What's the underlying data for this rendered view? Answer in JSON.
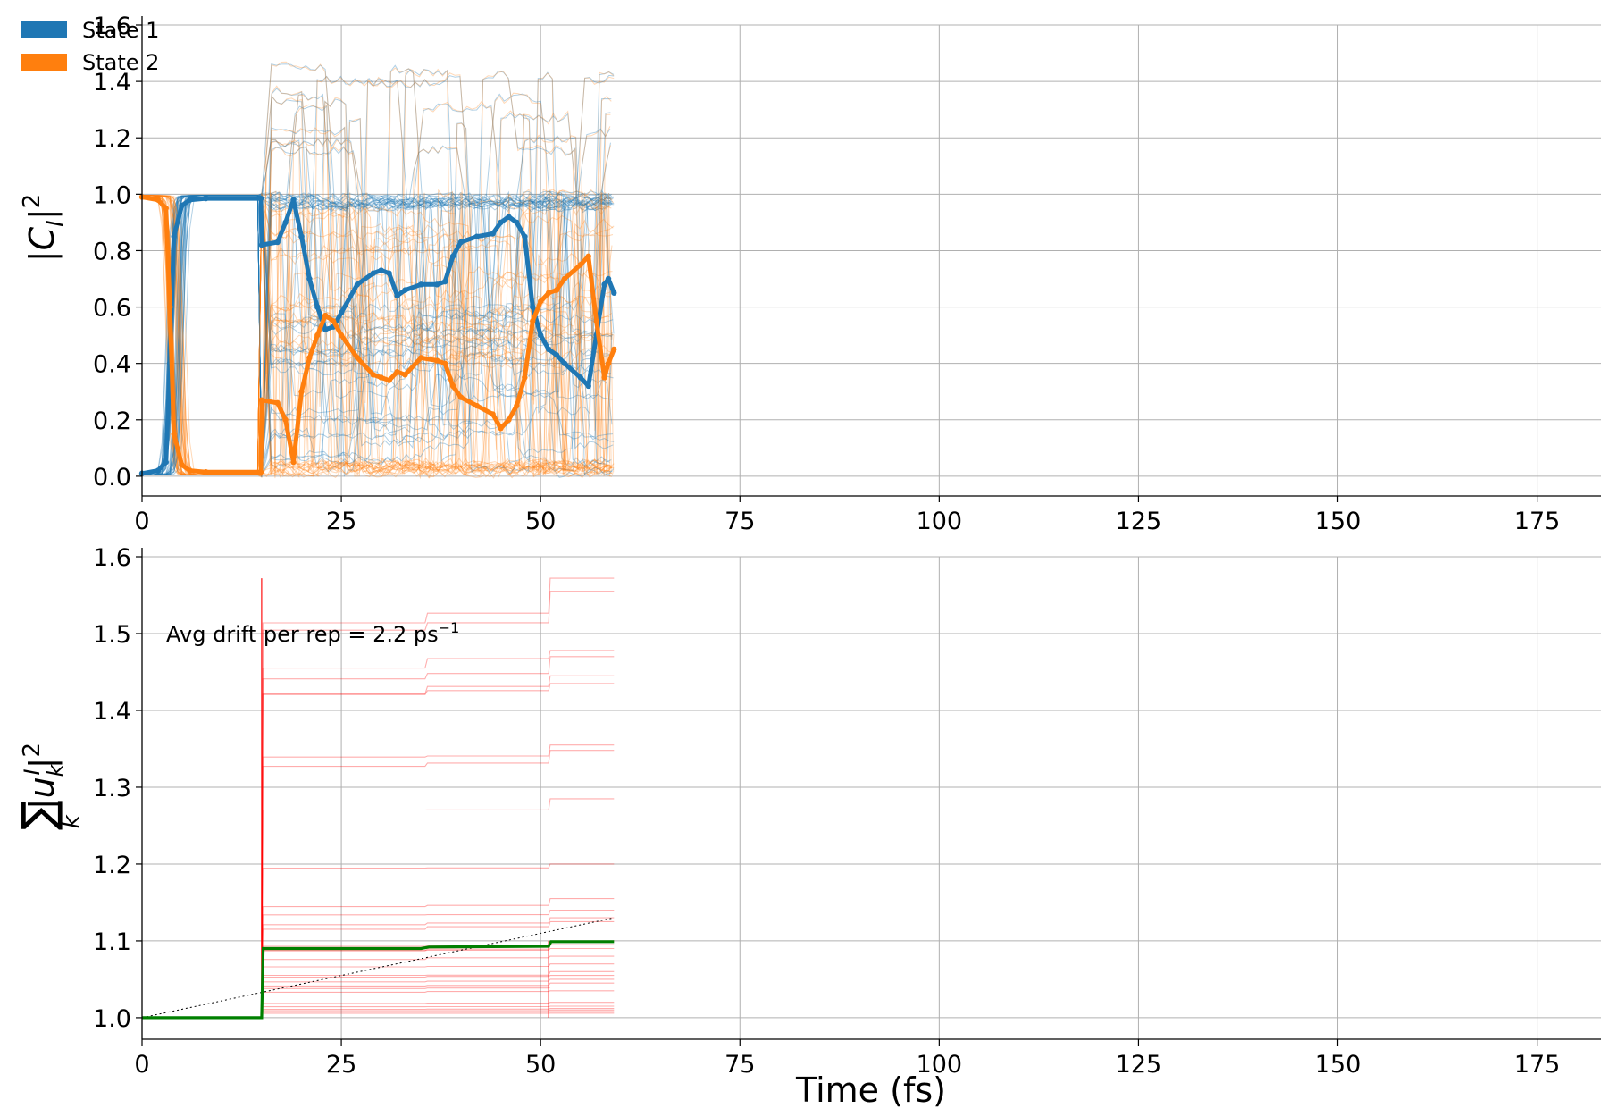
{
  "chart_data": [
    {
      "type": "line",
      "ylabel": "|C_I|²",
      "xlabel": "",
      "xlim": [
        0,
        183
      ],
      "ylim": [
        -0.07,
        1.6
      ],
      "xticks": [
        0,
        25,
        50,
        75,
        100,
        125,
        150,
        175
      ],
      "yticks": [
        "0.0",
        "0.2",
        "0.4",
        "0.6",
        "0.8",
        "1.0",
        "1.2",
        "1.4",
        "1.6"
      ],
      "grid": true,
      "legend": {
        "placement": "top-left",
        "entries": [
          {
            "label": "State 1",
            "color": "#1f77b4"
          },
          {
            "label": "State 2",
            "color": "#ff7f0e"
          }
        ]
      },
      "series": [
        {
          "name": "State 1",
          "color": "#1f77b4",
          "x": [
            0,
            2,
            3,
            3.5,
            4,
            5,
            6,
            8,
            14.9,
            15,
            17,
            18,
            19,
            20,
            21,
            22,
            23,
            24,
            25,
            27,
            29,
            30,
            31,
            32,
            33,
            35,
            37,
            38,
            39,
            40,
            42,
            44,
            45,
            46,
            47,
            48,
            49,
            50,
            51,
            52,
            53,
            55,
            56,
            57,
            58,
            58.5,
            59.2
          ],
          "y": [
            0.01,
            0.02,
            0.05,
            0.4,
            0.85,
            0.96,
            0.98,
            0.985,
            0.985,
            0.82,
            0.83,
            0.9,
            0.98,
            0.85,
            0.7,
            0.6,
            0.52,
            0.53,
            0.58,
            0.68,
            0.72,
            0.73,
            0.72,
            0.64,
            0.66,
            0.68,
            0.68,
            0.69,
            0.78,
            0.83,
            0.85,
            0.86,
            0.9,
            0.92,
            0.9,
            0.85,
            0.6,
            0.5,
            0.45,
            0.43,
            0.4,
            0.35,
            0.32,
            0.5,
            0.68,
            0.7,
            0.65
          ]
        },
        {
          "name": "State 2",
          "color": "#ff7f0e",
          "x": [
            0,
            2,
            3,
            3.5,
            4,
            5,
            6,
            8,
            14.9,
            15,
            17,
            18,
            19,
            20,
            21,
            22,
            23,
            24,
            25,
            27,
            29,
            30,
            31,
            32,
            33,
            35,
            37,
            38,
            39,
            40,
            42,
            44,
            45,
            46,
            47,
            48,
            49,
            50,
            51,
            52,
            53,
            55,
            56,
            57,
            58,
            58.5,
            59.2
          ],
          "y": [
            0.99,
            0.98,
            0.95,
            0.6,
            0.15,
            0.04,
            0.02,
            0.015,
            0.015,
            0.27,
            0.26,
            0.2,
            0.05,
            0.3,
            0.42,
            0.5,
            0.57,
            0.55,
            0.5,
            0.42,
            0.36,
            0.35,
            0.34,
            0.37,
            0.36,
            0.42,
            0.41,
            0.4,
            0.32,
            0.28,
            0.25,
            0.22,
            0.17,
            0.2,
            0.25,
            0.35,
            0.55,
            0.62,
            0.65,
            0.66,
            0.7,
            0.75,
            0.78,
            0.55,
            0.35,
            0.4,
            0.45
          ]
        }
      ]
    },
    {
      "type": "line",
      "xlabel": "Time (fs)",
      "ylabel": "Σₖ|uₖᴵ|²",
      "xlim": [
        0,
        183
      ],
      "ylim": [
        0.972,
        1.6
      ],
      "xticks": [
        0,
        25,
        50,
        75,
        100,
        125,
        150,
        175
      ],
      "yticks": [
        "1.0",
        "1.1",
        "1.2",
        "1.3",
        "1.4",
        "1.5",
        "1.6"
      ],
      "grid": true,
      "annotation": {
        "text": "Avg drift per rep = 2.2 ps",
        "superscript": "−1"
      },
      "replicas": {
        "color": "#ff0000",
        "x_jump_1": 15,
        "x_jump_2": 35.5,
        "x_jump_3": 51,
        "x_end": 59.2,
        "plateaus_after_first_jump": [
          1.57,
          1.47,
          1.44,
          1.34,
          1.28,
          1.195,
          1.15,
          1.13,
          1.12,
          1.1,
          1.09,
          1.08,
          1.07,
          1.06,
          1.05,
          1.04,
          1.035,
          1.03,
          1.02,
          1.015,
          1.01,
          1.008,
          1.005,
          1.003,
          1.001
        ],
        "final_values": [
          1.572,
          1.555,
          1.478,
          1.47,
          1.445,
          1.435,
          1.355,
          1.348,
          1.285,
          1.2,
          1.155,
          1.14,
          1.13,
          1.125,
          1.1,
          1.095,
          1.09,
          1.08,
          1.07,
          1.06,
          1.055,
          1.05,
          1.045,
          1.04,
          1.035,
          1.02,
          1.015,
          1.012,
          1.01,
          1.008,
          1.006
        ]
      },
      "mean": {
        "color": "#008000",
        "x": [
          0,
          15,
          15.2,
          35,
          36,
          51,
          51.3,
          59.2
        ],
        "y": [
          1.0,
          1.0,
          1.09,
          1.09,
          1.092,
          1.093,
          1.099,
          1.099
        ]
      },
      "drift_line": {
        "color": "#000000",
        "style": "dotted",
        "x": [
          0,
          59.2
        ],
        "y": [
          1.0,
          1.13
        ]
      }
    }
  ]
}
